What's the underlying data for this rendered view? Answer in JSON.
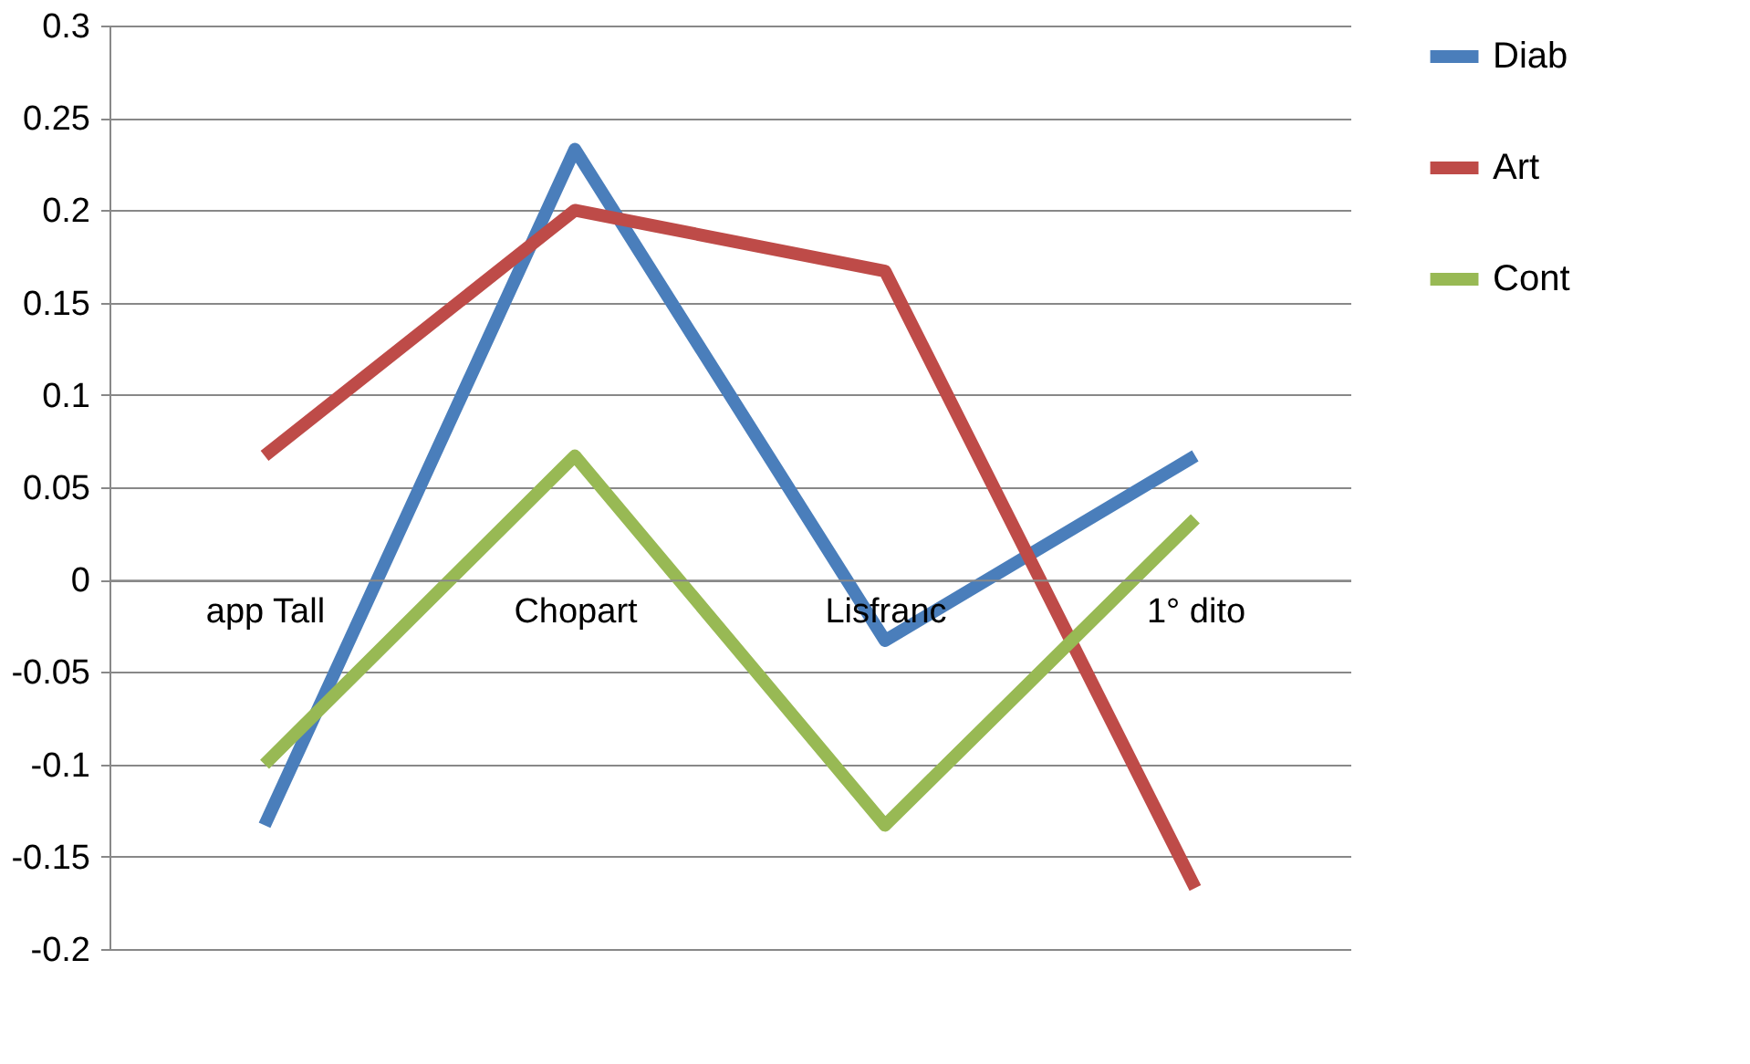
{
  "chart_data": {
    "type": "line",
    "categories": [
      "app Tall",
      "Chopart",
      "Lisfranc",
      "1° dito"
    ],
    "series": [
      {
        "name": "Diab",
        "color": "#4a7ebb",
        "values": [
          -0.133,
          0.233,
          -0.033,
          0.067
        ]
      },
      {
        "name": "Art",
        "color": "#be4b48",
        "values": [
          0.067,
          0.2,
          0.167,
          -0.167
        ]
      },
      {
        "name": "Cont",
        "color": "#98b954",
        "values": [
          -0.1,
          0.067,
          -0.133,
          0.033
        ]
      }
    ],
    "ylim": [
      -0.2,
      0.3
    ],
    "yticks": [
      -0.2,
      -0.15,
      -0.1,
      -0.05,
      0,
      0.05,
      0.1,
      0.15,
      0.2,
      0.25,
      0.3
    ],
    "grid": "y",
    "legend": "right",
    "marker": "none",
    "line_style": "solid"
  }
}
